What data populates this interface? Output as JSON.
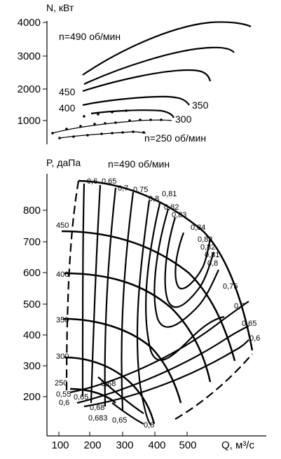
{
  "chart_data": [
    {
      "type": "line",
      "ylabel": "N, кВт",
      "yticks": [
        "4000",
        "3000",
        "2000",
        "1000"
      ],
      "ylim": [
        0,
        4200
      ],
      "xlim": [
        100,
        600
      ],
      "grid": false,
      "series": [
        {
          "name": "n=490 об/мин",
          "x": [
            160,
            220,
            300,
            400,
            500,
            560,
            600
          ],
          "y": [
            1700,
            2550,
            3300,
            3800,
            3950,
            3900,
            3700
          ]
        },
        {
          "name": "",
          "x": [
            170,
            250,
            350,
            450,
            520,
            550
          ],
          "y": [
            1480,
            2200,
            2800,
            3150,
            3200,
            3080
          ]
        },
        {
          "name": "450",
          "x": [
            160,
            250,
            350,
            450,
            480
          ],
          "y": [
            1170,
            1700,
            2150,
            2330,
            2250
          ]
        },
        {
          "name": "400",
          "x": [
            160,
            260,
            360,
            420,
            450
          ],
          "y": [
            900,
            1300,
            1560,
            1600,
            1550
          ]
        },
        {
          "name": "350",
          "x": [
            170,
            260,
            350,
            400
          ],
          "y": [
            600,
            880,
            1000,
            1000
          ]
        },
        {
          "name": "300",
          "x": [
            100,
            200,
            300,
            400,
            440
          ],
          "y": [
            640,
            860,
            990,
            1010,
            1000
          ]
        },
        {
          "name": "n=250 об/мин",
          "x": [
            120,
            200,
            300,
            340
          ],
          "y": [
            340,
            470,
            590,
            570
          ]
        }
      ],
      "labels": {
        "n490": "n=490 об/мин",
        "s450": "450",
        "s400": "400",
        "s350": "350",
        "s300": "300",
        "n250": "n=250 об/мин"
      }
    },
    {
      "type": "line",
      "title": "n=490 об/мин",
      "ylabel": "P, даПа",
      "xlabel": "Q, м³/с",
      "xticks": [
        "100",
        "200",
        "300",
        "400",
        "500"
      ],
      "yticks": [
        "800",
        "700",
        "600",
        "500",
        "400",
        "300",
        "200"
      ],
      "xlim": [
        100,
        600
      ],
      "ylim": [
        100,
        900
      ],
      "grid": false,
      "speed_labels": [
        "450",
        "400",
        "350",
        "300",
        "250"
      ],
      "efficiency_labels": {
        "top": [
          "0,6",
          "0,65",
          "0,7",
          "0,75",
          "0,8",
          "0,81",
          "0,82",
          "0,83"
        ],
        "right": [
          "0,84",
          "0,83",
          "0,82",
          "0,81",
          "0,8",
          "0,75",
          "0,7",
          "0,65",
          "0,6"
        ],
        "bottom": [
          "0,55",
          "0,6",
          "0,65",
          "0,68",
          "0,68",
          "0,683",
          "0,65",
          "0,6"
        ]
      },
      "series": [
        {
          "name": "",
          "x": [
            160,
            250,
            350,
            450,
            520,
            590
          ],
          "y": [
            870,
            850,
            800,
            700,
            560,
            400
          ]
        },
        {
          "name": "",
          "x": [
            160,
            260,
            350,
            430,
            500
          ],
          "y": [
            720,
            700,
            640,
            560,
            450
          ]
        },
        {
          "name": "",
          "x": [
            150,
            250,
            330,
            400,
            450
          ],
          "y": [
            580,
            560,
            510,
            440,
            380
          ]
        },
        {
          "name": "",
          "x": [
            150,
            230,
            300,
            350,
            380
          ],
          "y": [
            440,
            420,
            380,
            330,
            290
          ]
        },
        {
          "name": "",
          "x": [
            150,
            210,
            260,
            300,
            320
          ],
          "y": [
            310,
            290,
            260,
            220,
            190
          ]
        }
      ]
    }
  ]
}
